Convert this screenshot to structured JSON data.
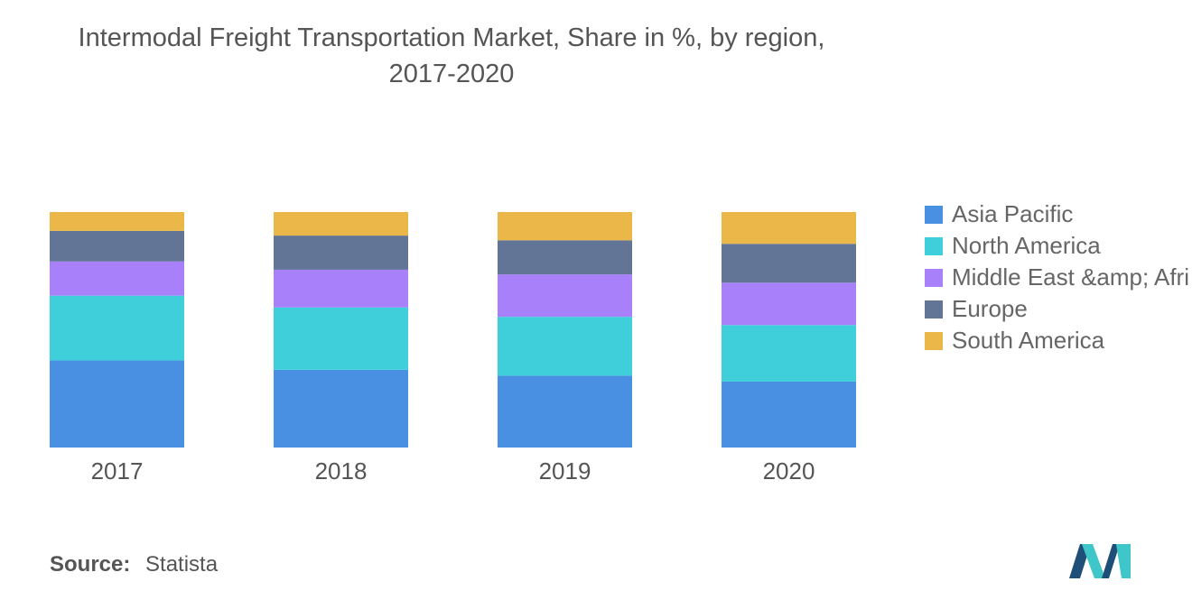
{
  "header": {
    "title_line1": "Intermodal Freight Transportation Market, Share in %, by region,",
    "title_line2": "2017-2020"
  },
  "chart_data": {
    "type": "bar",
    "stacked": true,
    "categories": [
      "2017",
      "2018",
      "2019",
      "2020"
    ],
    "series": [
      {
        "name": "Asia Pacific",
        "color": "#4a90e2",
        "values": [
          37,
          33,
          30.5,
          28
        ]
      },
      {
        "name": "North America",
        "color": "#3ecfda",
        "values": [
          27.5,
          26.5,
          25,
          24
        ]
      },
      {
        "name": "Middle East &amp; Afri",
        "color": "#a780fa",
        "values": [
          14.5,
          16,
          18,
          18
        ]
      },
      {
        "name": "Europe",
        "color": "#637596",
        "values": [
          13,
          14.5,
          14.5,
          16.5
        ]
      },
      {
        "name": "South America",
        "color": "#ebb748",
        "values": [
          8,
          10,
          12,
          13.5
        ]
      }
    ],
    "ylim": [
      0,
      100
    ],
    "grid": false,
    "legend_position": "right"
  },
  "footer": {
    "source_label": "Source:",
    "source_value": "Statista"
  },
  "logo": {
    "icon": "mordor-intelligence-logo-icon",
    "colors": [
      "#1f4e79",
      "#3ec6c9"
    ]
  }
}
